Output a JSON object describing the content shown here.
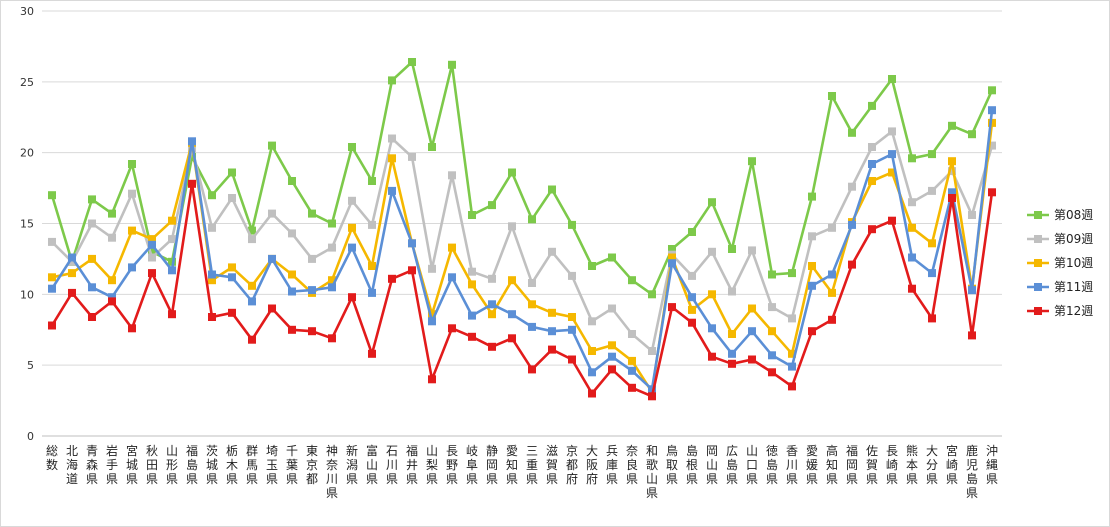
{
  "chart_data": {
    "type": "line",
    "ylim": [
      0,
      30
    ],
    "yticks": [
      0,
      5,
      10,
      15,
      20,
      25,
      30
    ],
    "grid": true,
    "legend_position": "right",
    "categories": [
      "総数",
      "北海道",
      "青森県",
      "岩手県",
      "宮城県",
      "秋田県",
      "山形県",
      "福島県",
      "茨城県",
      "栃木県",
      "群馬県",
      "埼玉県",
      "千葉県",
      "東京都",
      "神奈川県",
      "新潟県",
      "富山県",
      "石川県",
      "福井県",
      "山梨県",
      "長野県",
      "岐阜県",
      "静岡県",
      "愛知県",
      "三重県",
      "滋賀県",
      "京都府",
      "大阪府",
      "兵庫県",
      "奈良県",
      "和歌山県",
      "鳥取県",
      "島根県",
      "岡山県",
      "広島県",
      "山口県",
      "徳島県",
      "香川県",
      "愛媛県",
      "高知県",
      "福岡県",
      "佐賀県",
      "長崎県",
      "熊本県",
      "大分県",
      "宮崎県",
      "鹿児島県",
      "沖縄県"
    ],
    "series": [
      {
        "name": "第08週",
        "color": "#7dc94a",
        "values": [
          17.0,
          12.3,
          16.7,
          15.7,
          19.2,
          13.0,
          12.3,
          19.7,
          17.0,
          18.6,
          14.5,
          20.5,
          18.0,
          15.7,
          15.0,
          20.4,
          18.0,
          25.1,
          26.4,
          20.4,
          26.2,
          15.6,
          16.3,
          18.6,
          15.3,
          17.4,
          14.9,
          12.0,
          12.6,
          11.0,
          10.0,
          13.2,
          14.4,
          16.5,
          13.2,
          19.4,
          11.4,
          11.5,
          16.9,
          24.0,
          21.4,
          23.3,
          25.2,
          19.6,
          19.9,
          21.9,
          21.3,
          24.4
        ]
      },
      {
        "name": "第09週",
        "color": "#c0c0c0",
        "values": [
          13.7,
          12.3,
          15.0,
          14.0,
          17.1,
          12.6,
          13.9,
          20.3,
          14.7,
          16.8,
          13.9,
          15.7,
          14.3,
          12.5,
          13.3,
          16.6,
          14.9,
          21.0,
          19.7,
          11.8,
          18.4,
          11.6,
          11.1,
          14.8,
          10.8,
          13.0,
          11.3,
          8.1,
          9.0,
          7.2,
          6.0,
          12.8,
          11.3,
          13.0,
          10.2,
          13.1,
          9.1,
          8.3,
          14.1,
          14.7,
          17.6,
          20.4,
          21.5,
          16.5,
          17.3,
          18.7,
          15.6,
          20.5
        ]
      },
      {
        "name": "第10週",
        "color": "#f5b800",
        "values": [
          11.2,
          11.5,
          12.5,
          11.0,
          14.5,
          13.9,
          15.2,
          20.7,
          11.0,
          11.9,
          10.6,
          12.5,
          11.4,
          10.1,
          11.0,
          14.7,
          12.0,
          19.6,
          13.6,
          8.6,
          13.3,
          10.7,
          8.6,
          11.0,
          9.3,
          8.7,
          8.4,
          6.0,
          6.4,
          5.3,
          3.1,
          12.6,
          8.9,
          10.0,
          7.2,
          9.0,
          7.4,
          5.8,
          12.0,
          10.1,
          15.1,
          18.0,
          18.6,
          14.7,
          13.6,
          19.4,
          10.4,
          22.1
        ]
      },
      {
        "name": "第11週",
        "color": "#5b8fd6",
        "values": [
          10.4,
          12.6,
          10.5,
          9.8,
          11.9,
          13.5,
          11.7,
          20.8,
          11.4,
          11.2,
          9.5,
          12.5,
          10.2,
          10.3,
          10.5,
          13.3,
          10.1,
          17.3,
          13.6,
          8.1,
          11.2,
          8.5,
          9.3,
          8.6,
          7.7,
          7.4,
          7.5,
          4.5,
          5.6,
          4.6,
          3.3,
          12.2,
          9.8,
          7.6,
          5.8,
          7.4,
          5.7,
          4.9,
          10.6,
          11.4,
          14.9,
          19.2,
          19.9,
          12.6,
          11.5,
          17.2,
          10.3,
          23.0
        ]
      },
      {
        "name": "第12週",
        "color": "#e21b1b",
        "values": [
          7.8,
          10.1,
          8.4,
          9.5,
          7.6,
          11.5,
          8.6,
          17.8,
          8.4,
          8.7,
          6.8,
          9.0,
          7.5,
          7.4,
          6.9,
          9.8,
          5.8,
          11.1,
          11.7,
          4.0,
          7.6,
          7.0,
          6.3,
          6.9,
          4.7,
          6.1,
          5.4,
          3.0,
          4.7,
          3.4,
          2.8,
          9.1,
          8.0,
          5.6,
          5.1,
          5.4,
          4.5,
          3.5,
          7.4,
          8.2,
          12.1,
          14.6,
          15.2,
          10.4,
          8.3,
          16.8,
          7.1,
          17.2
        ]
      }
    ]
  }
}
